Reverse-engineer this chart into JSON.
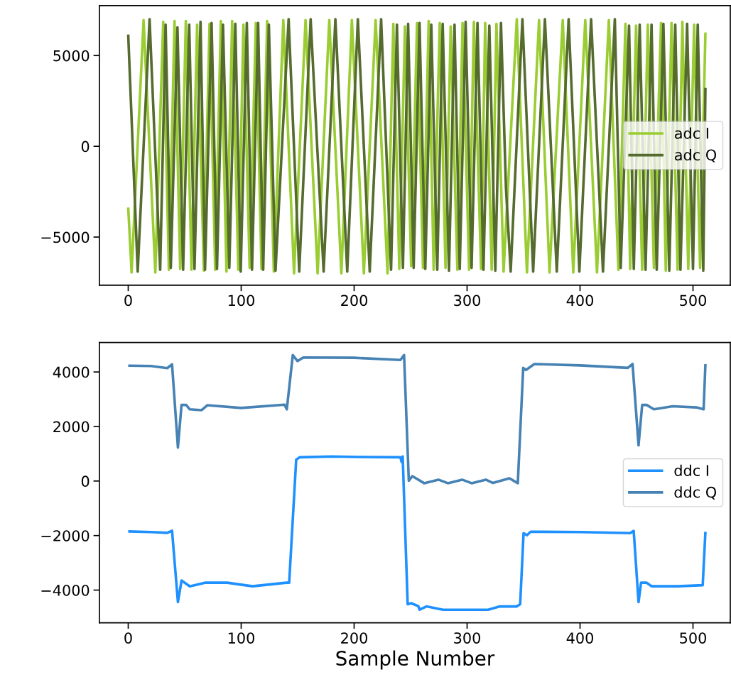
{
  "chart_data": [
    {
      "type": "line",
      "xlim": [
        -25.5,
        533
      ],
      "xticks": [
        0,
        100,
        200,
        300,
        400,
        500
      ],
      "ylim": [
        -7650,
        7750
      ],
      "yticks": [
        {
          "value": -5000,
          "label": "−5000"
        },
        0,
        5000
      ],
      "legend": "right",
      "grid": false,
      "marker": "none",
      "line_style": "solid",
      "series": [
        {
          "name": "adc I",
          "color": "#9acd32",
          "x": [
            0,
            3,
            13.6,
            24,
            31,
            36,
            41,
            46,
            51,
            56,
            61,
            67,
            72,
            77,
            82,
            87,
            92,
            97.5,
            102,
            107.5,
            113,
            118,
            123,
            128.9,
            137.3,
            146.8,
            157,
            167.7,
            178,
            188.7,
            198,
            208.6,
            219,
            229.6,
            234.7,
            240,
            245,
            250.5,
            255.7,
            261,
            266,
            270.4,
            275.8,
            280.9,
            285.5,
            291.4,
            296,
            301.8,
            306,
            312.4,
            316,
            321.8,
            326,
            332.3,
            344,
            353,
            363.7,
            373,
            384.7,
            394,
            404.6,
            415,
            425.5,
            434,
            440.2,
            444.4,
            449.6,
            455,
            460,
            465.4,
            471.7,
            475.9,
            481,
            486.4,
            490.6,
            495.8,
            501,
            506.3,
            511
          ],
          "values": [
            -3370,
            -6950,
            6950,
            -6950,
            6850,
            -6800,
            6900,
            -6750,
            6900,
            -6800,
            6700,
            -6850,
            6750,
            -6800,
            6900,
            -6900,
            6900,
            -6800,
            6700,
            -6700,
            6800,
            -6750,
            6900,
            -6900,
            6950,
            -7000,
            6950,
            -7000,
            6950,
            -7000,
            6950,
            -7000,
            6950,
            -7000,
            6750,
            -6750,
            6600,
            -6600,
            6800,
            -6700,
            6900,
            -6800,
            6800,
            -6700,
            6600,
            -6800,
            6800,
            -6800,
            6850,
            -6750,
            6800,
            -6800,
            6750,
            -6900,
            7000,
            -6950,
            6950,
            -6950,
            6950,
            -6950,
            6950,
            -6950,
            6950,
            -6800,
            6750,
            -6750,
            6650,
            -6800,
            6700,
            -6700,
            6800,
            -6850,
            6800,
            -6800,
            6850,
            -6750,
            6700,
            -6700,
            6270
          ]
        },
        {
          "name": "adc Q",
          "color": "#556b2f",
          "x": [
            0,
            8.4,
            18.9,
            28.3,
            33.1,
            37.7,
            43.6,
            48.6,
            54,
            58.7,
            64,
            68,
            73.8,
            78.6,
            83.9,
            89.5,
            94.8,
            99.6,
            105,
            109.6,
            115,
            119.5,
            124.5,
            130.4,
            142,
            151.4,
            161.5,
            173,
            183.4,
            193.9,
            203.3,
            213.8,
            223.9,
            232.7,
            237.9,
            243.2,
            247.8,
            252.7,
            257.9,
            263,
            268.3,
            273.6,
            278.4,
            284,
            288.9,
            293.5,
            298.7,
            304,
            309.2,
            314.5,
            319.7,
            325,
            330,
            334.4,
            338.6,
            349,
            358.5,
            368.9,
            379.4,
            389.9,
            399.4,
            409.8,
            420.3,
            430.8,
            436,
            443.4,
            447.6,
            452.8,
            458,
            463.3,
            467.9,
            473.8,
            479,
            484.3,
            488.9,
            494.8,
            500,
            504.2,
            509.1,
            511
          ],
          "values": [
            6160,
            -6900,
            7000,
            -6800,
            6700,
            -6700,
            6550,
            -6800,
            6700,
            -6750,
            6850,
            -6800,
            6800,
            -6750,
            6700,
            -6700,
            6750,
            -6900,
            6800,
            -6800,
            6800,
            -6800,
            6700,
            -6850,
            7000,
            -6900,
            7000,
            -6900,
            7000,
            -6900,
            7000,
            -6900,
            7000,
            -6800,
            6700,
            -6700,
            6750,
            -6700,
            6800,
            -6750,
            6700,
            -6800,
            6750,
            -6850,
            6700,
            -6750,
            6850,
            -6700,
            6800,
            -6800,
            6650,
            -6850,
            6800,
            -2270,
            -6900,
            7000,
            -6900,
            7000,
            -6900,
            7000,
            -6900,
            7000,
            -6900,
            7000,
            -6700,
            6650,
            -6750,
            6700,
            -6800,
            6700,
            -6800,
            6750,
            -6850,
            6700,
            -6800,
            6750,
            -6750,
            6700,
            -6850,
            3220
          ]
        }
      ]
    },
    {
      "type": "line",
      "xlabel": "Sample Number",
      "xlim": [
        -25.5,
        533
      ],
      "xticks": [
        0,
        100,
        200,
        300,
        400,
        500
      ],
      "ylim": [
        -5200,
        5080
      ],
      "yticks": [
        {
          "value": -4000,
          "label": "−4000"
        },
        {
          "value": -2000,
          "label": "−2000"
        },
        0,
        2000,
        4000
      ],
      "legend": "right",
      "grid": false,
      "marker": "none",
      "line_style": "solid",
      "series": [
        {
          "name": "ddc I",
          "color": "#1e90ff",
          "x": [
            0,
            20,
            34.6,
            38.8,
            44,
            47.2,
            54.5,
            67.9,
            87.7,
            110,
            140,
            142.5,
            148.7,
            151.7,
            180,
            210,
            241,
            242,
            243,
            247.4,
            250.5,
            256.8,
            257.9,
            264,
            278.8,
            299.8,
            318.6,
            329,
            343.8,
            347,
            350,
            353,
            356.3,
            400,
            444.4,
            447.5,
            451.8,
            454,
            459,
            463.5,
            486.6,
            508.6,
            511
          ],
          "values": [
            -1850,
            -1870,
            -1900,
            -1820,
            -4440,
            -3650,
            -3860,
            -3730,
            -3730,
            -3860,
            -3730,
            -3730,
            780,
            870,
            900,
            880,
            870,
            700,
            900,
            -4520,
            -4480,
            -4590,
            -4720,
            -4600,
            -4720,
            -4720,
            -4720,
            -4600,
            -4600,
            -4520,
            -1910,
            -1990,
            -1860,
            -1870,
            -1910,
            -1830,
            -4440,
            -3730,
            -3730,
            -3860,
            -3860,
            -3820,
            -1860
          ]
        },
        {
          "name": "ddc Q",
          "color": "#4682b4",
          "x": [
            0,
            20,
            34.6,
            38.8,
            44,
            47.2,
            51.3,
            54.5,
            65,
            70,
            100,
            138.4,
            140.4,
            145.7,
            149.9,
            155,
            200,
            241,
            244.2,
            248.4,
            251.6,
            262,
            274.6,
            283,
            295.6,
            304,
            316.6,
            322.9,
            337.5,
            344.9,
            349.7,
            352,
            359.5,
            400,
            442.3,
            446.5,
            451.8,
            455,
            459,
            465.4,
            482,
            503,
            509.4,
            511
          ],
          "values": [
            4230,
            4220,
            4140,
            4280,
            1230,
            2790,
            2790,
            2630,
            2600,
            2780,
            2680,
            2800,
            2630,
            4620,
            4400,
            4530,
            4520,
            4440,
            4620,
            10,
            180,
            -80,
            50,
            -80,
            50,
            -80,
            50,
            -70,
            100,
            -80,
            4150,
            4070,
            4290,
            4240,
            4150,
            4290,
            1310,
            2790,
            2790,
            2630,
            2740,
            2700,
            2630,
            4290
          ]
        }
      ]
    }
  ]
}
